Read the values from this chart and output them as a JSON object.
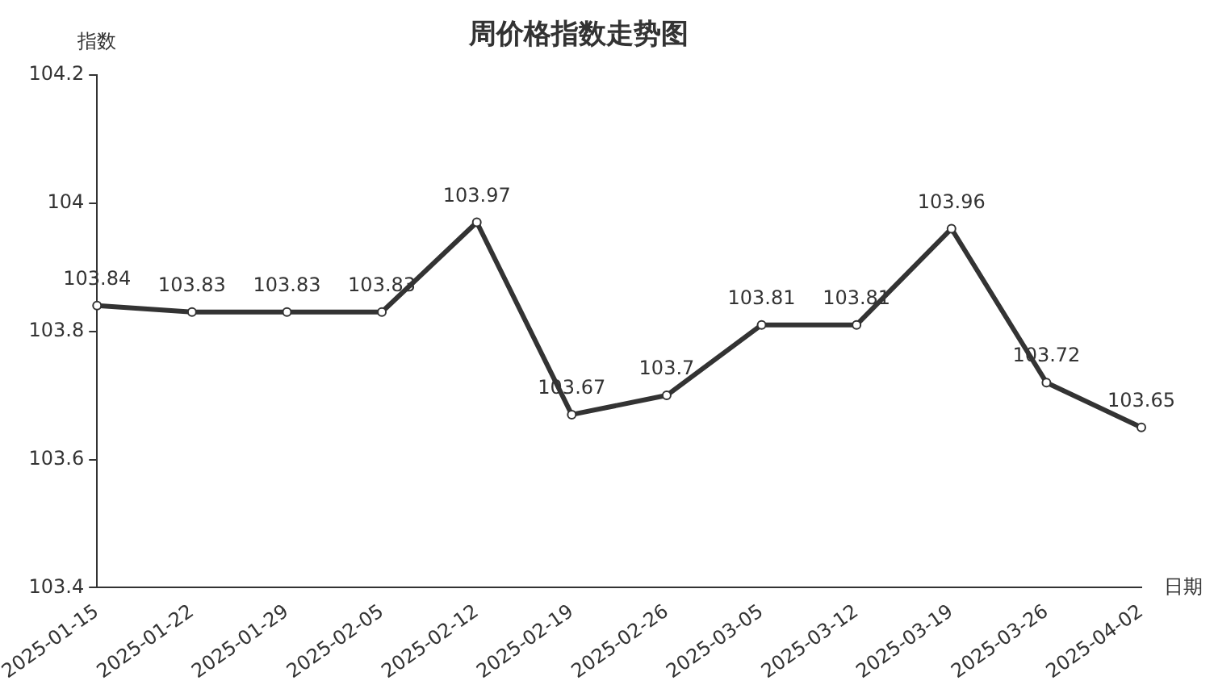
{
  "chart_data": {
    "type": "line",
    "title": "周价格指数走势图",
    "xlabel": "日期",
    "ylabel": "指数",
    "categories": [
      "2025-01-15",
      "2025-01-22",
      "2025-01-29",
      "2025-02-05",
      "2025-02-12",
      "2025-02-19",
      "2025-02-26",
      "2025-03-05",
      "2025-03-12",
      "2025-03-19",
      "2025-03-26",
      "2025-04-02"
    ],
    "series": [
      {
        "color": "#333333",
        "values": [
          103.84,
          103.83,
          103.83,
          103.83,
          103.97,
          103.67,
          103.7,
          103.81,
          103.81,
          103.96,
          103.72,
          103.65
        ]
      }
    ],
    "ylim": [
      103.4,
      104.2
    ],
    "yticks": [
      103.4,
      103.6,
      103.8,
      104,
      104.2
    ],
    "grid": false,
    "legend": false,
    "marker": "circle",
    "line_style": "solid",
    "data_labels": true
  }
}
